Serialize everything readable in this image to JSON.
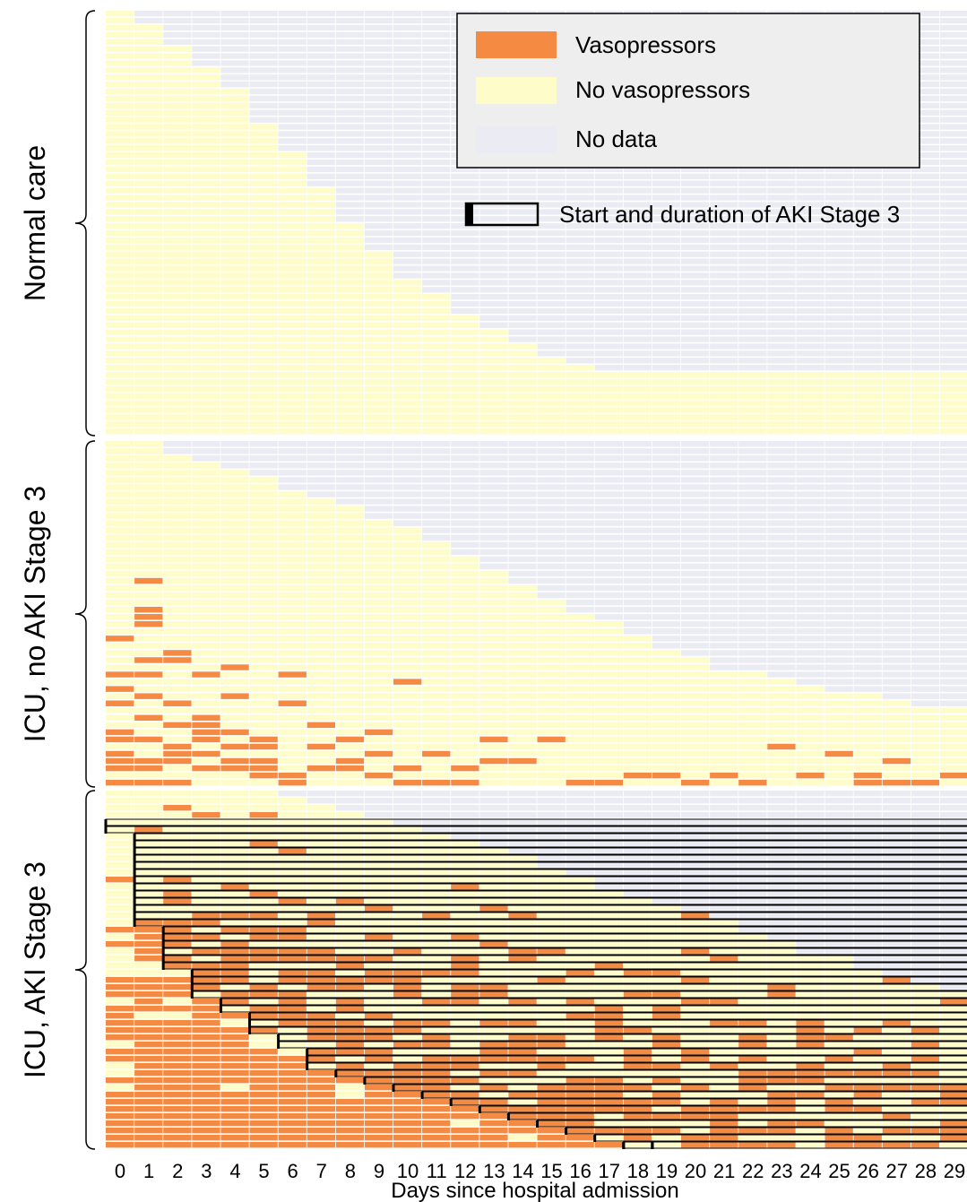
{
  "chart_data": {
    "type": "heatmap",
    "title": "",
    "xlabel": "Days since hospital admission",
    "ylabel": "",
    "x": [
      0,
      1,
      2,
      3,
      4,
      5,
      6,
      7,
      8,
      9,
      10,
      11,
      12,
      13,
      14,
      15,
      16,
      17,
      18,
      19,
      20,
      21,
      22,
      23,
      24,
      25,
      26,
      27,
      28,
      29
    ],
    "xlim": [
      0,
      29
    ],
    "legend": {
      "placement": "top-right",
      "entries": [
        {
          "label": "Vasopressors",
          "color": "#f58a42"
        },
        {
          "label": "No vasopressors",
          "color": "#fefcc8"
        },
        {
          "label": "No data",
          "color": "#ebebf3"
        }
      ],
      "aki_label": "Start and duration of AKI Stage 3"
    },
    "groups": [
      {
        "name": "Normal care",
        "patients": 60,
        "series": [
          {
            "name": "Vasopressors",
            "values": [
              0,
              0,
              0,
              0,
              0,
              0,
              0,
              0,
              0,
              0,
              0,
              0,
              0,
              0,
              0,
              0,
              0,
              0,
              0,
              0,
              0,
              0,
              0,
              0,
              0,
              0,
              0,
              0,
              0,
              0
            ]
          },
          {
            "name": "No vasopressors",
            "values": [
              60,
              58,
              55,
              52,
              49,
              44,
              40,
              35,
              30,
              26,
              22,
              20,
              17,
              15,
              13,
              11,
              10,
              9,
              9,
              9,
              9,
              9,
              9,
              9,
              9,
              9,
              9,
              9,
              9,
              9
            ]
          }
        ]
      },
      {
        "name": "ICU, no AKI Stage 3",
        "patients": 48,
        "series": [
          {
            "name": "Vasopressors",
            "values": [
              10,
              12,
              8,
              7,
              6,
              5,
              4,
              3,
              3,
              3,
              3,
              2,
              2,
              2,
              1,
              1,
              1,
              1,
              1,
              1,
              1,
              1,
              1,
              1,
              1,
              1,
              2,
              2,
              1,
              1
            ]
          },
          {
            "name": "No vasopressors",
            "values": [
              38,
              36,
              38,
              38,
              38,
              38,
              37,
              37,
              36,
              34,
              33,
              32,
              30,
              28,
              27,
              25,
              23,
              22,
              20,
              18,
              17,
              15,
              15,
              14,
              13,
              12,
              11,
              10,
              10,
              10
            ]
          }
        ]
      },
      {
        "name": "ICU, AKI Stage 3",
        "patients": 50,
        "aki_start_days": [
          0,
          0,
          1,
          1,
          1,
          1,
          1,
          1,
          1,
          1,
          1,
          1,
          1,
          1,
          1,
          2,
          2,
          2,
          2,
          2,
          2,
          3,
          3,
          3,
          3,
          4,
          4,
          5,
          5,
          5,
          6,
          6,
          7,
          7,
          7,
          8,
          9,
          10,
          11,
          12,
          13,
          14,
          15,
          16,
          17,
          18,
          18,
          19,
          19,
          19
        ],
        "series": [
          {
            "name": "Vasopressors",
            "values": [
              22,
              30,
              32,
              30,
              28,
              27,
              26,
              24,
              22,
              21,
              20,
              19,
              18,
              17,
              16,
              15,
              14,
              13,
              12,
              12,
              11,
              11,
              10,
              10,
              9,
              9,
              8,
              8,
              8,
              7
            ]
          },
          {
            "name": "No vasopressors",
            "values": [
              28,
              20,
              18,
              20,
              22,
              23,
              23,
              24,
              25,
              25,
              25,
              25,
              25,
              25,
              25,
              24,
              24,
              23,
              23,
              22,
              22,
              21,
              20,
              19,
              18,
              18,
              17,
              16,
              15,
              15
            ]
          }
        ]
      }
    ]
  }
}
